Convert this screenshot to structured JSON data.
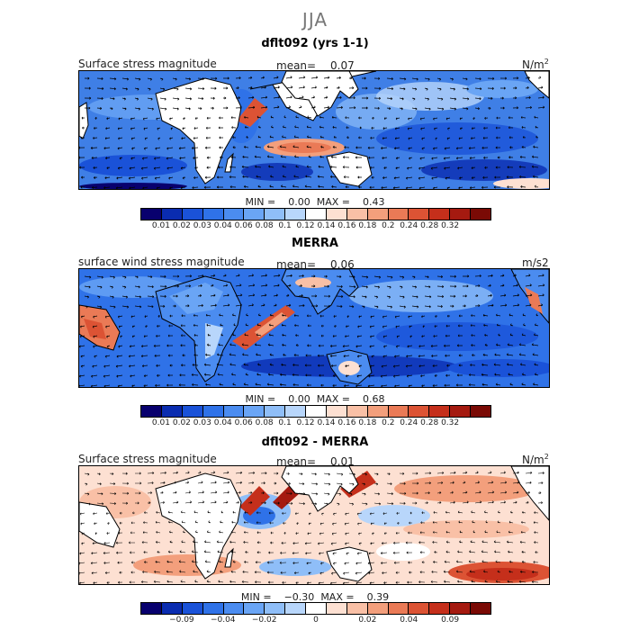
{
  "figure": {
    "title": "JJA"
  },
  "panels": [
    {
      "title": "dflt092 (yrs 1-1)",
      "variable": "Surface stress magnitude",
      "mean_label": "mean=",
      "mean_value": "0.07",
      "units": "N/m",
      "units_sup": "2",
      "min_label": "MIN =",
      "min_value": "0.00",
      "max_label": "MAX =",
      "max_value": "0.43"
    },
    {
      "title": "MERRA",
      "variable": "surface wind stress magnitude",
      "mean_label": "mean=",
      "mean_value": "0.06",
      "units": "m/s2",
      "units_sup": "",
      "min_label": "MIN =",
      "min_value": "0.00",
      "max_label": "MAX =",
      "max_value": "0.68"
    },
    {
      "title": "dflt092 - MERRA",
      "variable": "Surface stress magnitude",
      "mean_label": "mean=",
      "mean_value": "0.01",
      "units": "N/m",
      "units_sup": "2",
      "min_label": "MIN =",
      "min_value": "−0.30",
      "max_label": "MAX =",
      "max_value": "0.39"
    }
  ],
  "colorbars": {
    "magnitude": {
      "colors": [
        "#08006e",
        "#0a2cb0",
        "#1a52d8",
        "#2f72e8",
        "#4b8cf0",
        "#6aa5f5",
        "#8fbef8",
        "#b8d6fb",
        "#ffffff",
        "#fde0d2",
        "#f9c0a6",
        "#f39f7c",
        "#ea7a56",
        "#dc5334",
        "#c52f1b",
        "#a51a10",
        "#7a0a05"
      ],
      "tick_labels": [
        "0.01",
        "0.02",
        "0.03",
        "0.04",
        "0.06",
        "0.08",
        "0.1",
        "0.12",
        "0.14",
        "0.16",
        "0.18",
        "0.2",
        "0.24",
        "0.28",
        "0.32"
      ]
    },
    "difference": {
      "colors": [
        "#08006e",
        "#0a2cb0",
        "#1a52d8",
        "#2f72e8",
        "#4b8cf0",
        "#6aa5f5",
        "#8fbef8",
        "#b8d6fb",
        "#ffffff",
        "#fde0d2",
        "#f9c0a6",
        "#f39f7c",
        "#ea7a56",
        "#dc5334",
        "#c52f1b",
        "#a51a10",
        "#7a0a05"
      ],
      "tick_labels": [
        "−0.09",
        "−0.04",
        "−0.02",
        "0",
        "0.02",
        "0.04",
        "0.09"
      ]
    }
  },
  "legend_icons": {
    "land": "continent-outline",
    "vectors": "wind-stress-arrows"
  }
}
